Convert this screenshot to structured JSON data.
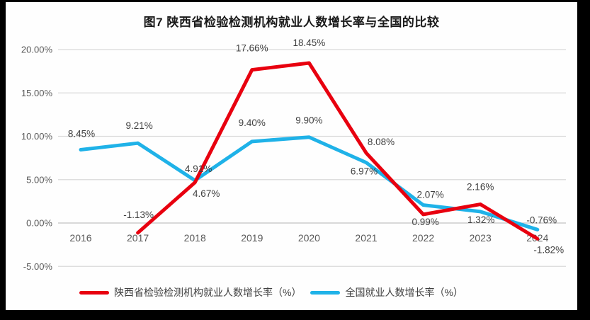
{
  "chart_data": {
    "type": "line",
    "title": "图7 陕西省检验检测机构就业人数增长率与全国的比较",
    "categories": [
      "2016",
      "2017",
      "2018",
      "2019",
      "2020",
      "2021",
      "2022",
      "2023",
      "2024"
    ],
    "series": [
      {
        "name": "陕西省检验检测机构就业人数增长率（%）",
        "color": "#e8000f",
        "values": [
          null,
          -1.13,
          4.67,
          17.66,
          18.45,
          8.08,
          0.99,
          2.16,
          -1.82
        ],
        "labels": [
          null,
          "-1.13%",
          "4.67%",
          "17.66%",
          "18.45%",
          "8.08%",
          "0.99%",
          "2.16%",
          "-1.82%"
        ]
      },
      {
        "name": "全国就业人数增长率（%）",
        "color": "#1fb2e8",
        "values": [
          8.45,
          9.21,
          4.91,
          9.4,
          9.9,
          6.97,
          2.07,
          1.32,
          -0.76
        ],
        "labels": [
          "8.45%",
          "9.21%",
          "4.91%",
          "9.40%",
          "9.90%",
          "6.97%",
          "2.07%",
          "1.32%",
          "-0.76%"
        ]
      }
    ],
    "y_axis": {
      "min": -5,
      "max": 20,
      "ticks": [
        {
          "label": "20.00%",
          "value": 20
        },
        {
          "label": "15.00%",
          "value": 15
        },
        {
          "label": "10.00%",
          "value": 10
        },
        {
          "label": "5.00%",
          "value": 5
        },
        {
          "label": "0.00%",
          "value": 0
        },
        {
          "label": "-5.00%",
          "value": -5
        }
      ]
    },
    "grid": true,
    "legend_position": "bottom",
    "colors": {
      "gridline": "#d9d9d9",
      "zero_line": "#c3c3c3",
      "axis_text": "#595959",
      "label_text": "#404040"
    },
    "layout": {
      "draw_order": [
        1,
        0
      ],
      "label_offsets": [
        [
          null,
          [
            1,
            -21
          ],
          [
            16,
            20
          ],
          [
            0,
            -26
          ],
          [
            0,
            -24
          ],
          [
            21,
            -11
          ],
          [
            3,
            15
          ],
          [
            0,
            -20
          ],
          [
            16,
            20
          ]
        ],
        [
          [
            1,
            -18
          ],
          [
            2,
            -20
          ],
          [
            5,
            -12
          ],
          [
            0,
            -22
          ],
          [
            0,
            -19
          ],
          [
            -3,
            17
          ],
          [
            10,
            -10
          ],
          [
            1,
            16
          ],
          [
            6,
            -9
          ]
        ]
      ]
    }
  }
}
